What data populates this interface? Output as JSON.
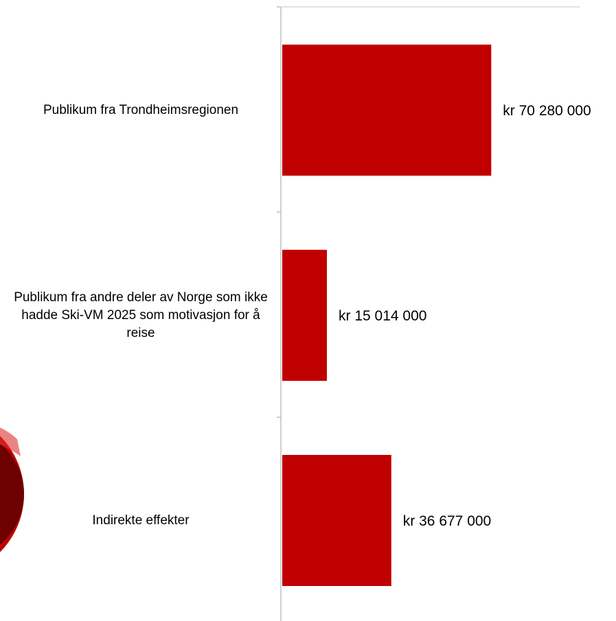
{
  "chart_data": {
    "type": "bar",
    "orientation": "horizontal",
    "categories": [
      "Publikum fra Trondheimsregionen",
      "Publikum fra andre deler av Norge som ikke hadde Ski-VM 2025 som motivasjon for å reise",
      "Indirekte effekter"
    ],
    "values": [
      70280000,
      15014000,
      36677000
    ],
    "value_labels": [
      "kr 70 280 000",
      "kr 15 014 000",
      "kr 36 677 000"
    ],
    "color": "#c00000",
    "xlim": [
      0,
      100000000
    ]
  }
}
